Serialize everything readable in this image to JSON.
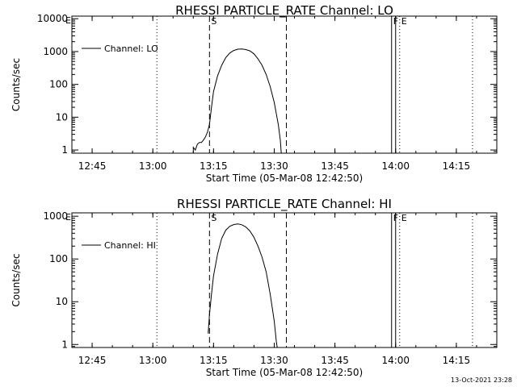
{
  "stamp": "13-Oct-2021 23:28",
  "chart_data": [
    {
      "type": "line",
      "title": "RHESSI PARTICLE_RATE Channel: LO",
      "xlabel": "Start Time (05-Mar-08 12:42:50)",
      "ylabel": "Counts/sec",
      "yscale": "log",
      "xlim": [
        "12:40",
        "14:25"
      ],
      "ylim": [
        0.8,
        12000
      ],
      "x_ticks": [
        "12:45",
        "13:00",
        "13:15",
        "13:30",
        "13:45",
        "14:00",
        "14:15"
      ],
      "y_ticks": [
        {
          "value": 1,
          "label": "1"
        },
        {
          "value": 10,
          "label": "10"
        },
        {
          "value": 100,
          "label": "100"
        },
        {
          "value": 1000,
          "label": "1000"
        },
        {
          "value": 10000,
          "label": "10000"
        }
      ],
      "legend": {
        "position": "top-left",
        "label": "Channel: LO"
      },
      "vlines": [
        {
          "time": "13:01",
          "style": "dotted",
          "label": ""
        },
        {
          "time": "13:14",
          "style": "dashed",
          "label": "S"
        },
        {
          "time": "13:33",
          "style": "dashed",
          "label": ""
        },
        {
          "time": "13:59",
          "style": "solid",
          "label": "F"
        },
        {
          "time": "14:00",
          "style": "solid",
          "label": ""
        },
        {
          "time": "14:01",
          "style": "dotted",
          "label": "E"
        },
        {
          "time": "14:19",
          "style": "dotted",
          "label": ""
        }
      ],
      "corner_mark": "E",
      "series": [
        {
          "name": "Channel: LO",
          "points": [
            [
              "13:10:00",
              0.8
            ],
            [
              "13:10:00",
              1.2
            ],
            [
              "13:10:30",
              1
            ],
            [
              "13:11:00",
              1.5
            ],
            [
              "13:11:30",
              1.7
            ],
            [
              "13:12:00",
              1.7
            ],
            [
              "13:12:30",
              2
            ],
            [
              "13:13:00",
              2.5
            ],
            [
              "13:13:30",
              3.5
            ],
            [
              "13:14:00",
              6
            ],
            [
              "13:14:30",
              20
            ],
            [
              "13:15:00",
              60
            ],
            [
              "13:16:00",
              180
            ],
            [
              "13:17:00",
              380
            ],
            [
              "13:18:00",
              650
            ],
            [
              "13:19:00",
              900
            ],
            [
              "13:20:00",
              1080
            ],
            [
              "13:21:00",
              1180
            ],
            [
              "13:22:00",
              1200
            ],
            [
              "13:23:00",
              1150
            ],
            [
              "13:24:00",
              1050
            ],
            [
              "13:25:00",
              850
            ],
            [
              "13:26:00",
              600
            ],
            [
              "13:27:00",
              380
            ],
            [
              "13:28:00",
              200
            ],
            [
              "13:29:00",
              85
            ],
            [
              "13:30:00",
              28
            ],
            [
              "13:31:00",
              6
            ],
            [
              "13:31:30",
              2
            ],
            [
              "13:31:45",
              0.8
            ]
          ]
        }
      ]
    },
    {
      "type": "line",
      "title": "RHESSI PARTICLE_RATE Channel: HI",
      "xlabel": "Start Time (05-Mar-08 12:42:50)",
      "ylabel": "Counts/sec",
      "yscale": "log",
      "xlim": [
        "12:40",
        "14:25"
      ],
      "ylim": [
        0.85,
        1200
      ],
      "x_ticks": [
        "12:45",
        "13:00",
        "13:15",
        "13:30",
        "13:45",
        "14:00",
        "14:15"
      ],
      "y_ticks": [
        {
          "value": 1,
          "label": "1"
        },
        {
          "value": 10,
          "label": "10"
        },
        {
          "value": 100,
          "label": "100"
        },
        {
          "value": 1000,
          "label": "1000"
        }
      ],
      "legend": {
        "position": "top-left",
        "label": "Channel: HI"
      },
      "vlines": [
        {
          "time": "13:01",
          "style": "dotted",
          "label": ""
        },
        {
          "time": "13:14",
          "style": "dashed",
          "label": "S"
        },
        {
          "time": "13:33",
          "style": "dashed",
          "label": ""
        },
        {
          "time": "13:59",
          "style": "solid",
          "label": "F"
        },
        {
          "time": "14:00",
          "style": "solid",
          "label": ""
        },
        {
          "time": "14:01",
          "style": "dotted",
          "label": "E"
        },
        {
          "time": "14:19",
          "style": "dotted",
          "label": ""
        }
      ],
      "corner_mark": "E",
      "series": [
        {
          "name": "Channel: HI",
          "points": [
            [
              "13:13:40",
              1.8
            ],
            [
              "13:14:00",
              5
            ],
            [
              "13:14:30",
              15
            ],
            [
              "13:15:00",
              40
            ],
            [
              "13:16:00",
              130
            ],
            [
              "13:17:00",
              300
            ],
            [
              "13:18:00",
              470
            ],
            [
              "13:19:00",
              580
            ],
            [
              "13:20:00",
              640
            ],
            [
              "13:21:00",
              660
            ],
            [
              "13:22:00",
              630
            ],
            [
              "13:23:00",
              560
            ],
            [
              "13:24:00",
              450
            ],
            [
              "13:25:00",
              320
            ],
            [
              "13:26:00",
              200
            ],
            [
              "13:27:00",
              110
            ],
            [
              "13:28:00",
              50
            ],
            [
              "13:29:00",
              15
            ],
            [
              "13:30:00",
              3.5
            ],
            [
              "13:30:30",
              1.2
            ],
            [
              "13:30:45",
              0.85
            ]
          ]
        }
      ]
    }
  ]
}
